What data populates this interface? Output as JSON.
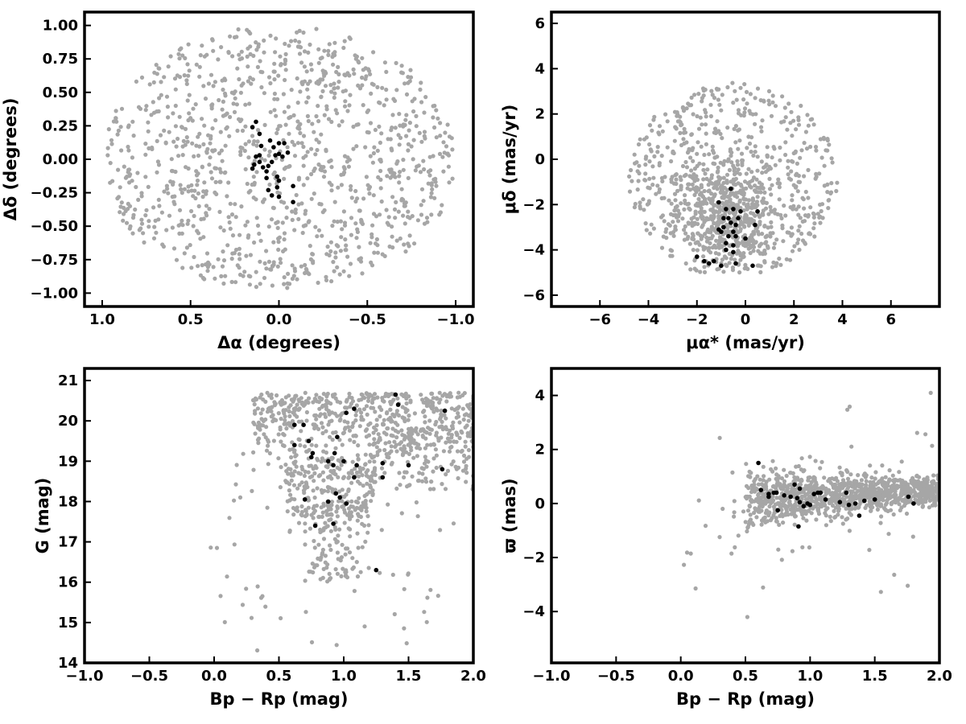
{
  "figure": {
    "background": "#ffffff",
    "field_color": "#a6a6a6",
    "member_color": "#000000"
  },
  "chart_data": [
    {
      "id": "sky",
      "type": "scatter",
      "xlabel": "Δα (degrees)",
      "ylabel": "Δδ (degrees)",
      "xlim": [
        1.1,
        -1.1
      ],
      "ylim": [
        -1.1,
        1.1
      ],
      "x_inverted": true,
      "xticks": [
        1.0,
        0.5,
        0.0,
        -0.5,
        -1.0
      ],
      "xtick_labels": [
        "1.0",
        "0.5",
        "0.0",
        "−0.5",
        "−1.0"
      ],
      "yticks": [
        1.0,
        0.75,
        0.5,
        0.25,
        0.0,
        -0.25,
        -0.5,
        -0.75,
        -1.0
      ],
      "ytick_labels": [
        "1.00",
        "0.75",
        "0.50",
        "0.25",
        "0.00",
        "−0.25",
        "−0.50",
        "−0.75",
        "−1.00"
      ],
      "grid": false,
      "legend": "none",
      "field_distribution": {
        "shape": "disk",
        "center": [
          0,
          0
        ],
        "radius": 1.0,
        "count": 1100
      },
      "series": [
        {
          "role": "members",
          "points": [
            [
              0.13,
              0.28
            ],
            [
              0.15,
              0.24
            ],
            [
              0.11,
              0.19
            ],
            [
              0.1,
              0.1
            ],
            [
              0.11,
              0.03
            ],
            [
              0.05,
              0.14
            ],
            [
              0.03,
              0.09
            ],
            [
              0.02,
              0.03
            ],
            [
              0.0,
              0.12
            ],
            [
              0.0,
              0.04
            ],
            [
              -0.03,
              0.12
            ],
            [
              -0.05,
              0.05
            ],
            [
              -0.02,
              0.02
            ],
            [
              0.04,
              -0.02
            ],
            [
              0.06,
              -0.05
            ],
            [
              0.09,
              -0.06
            ],
            [
              0.11,
              -0.02
            ],
            [
              0.13,
              0.02
            ],
            [
              0.14,
              -0.04
            ],
            [
              0.15,
              -0.07
            ],
            [
              0.07,
              -0.09
            ],
            [
              0.07,
              -0.14
            ],
            [
              0.01,
              -0.13
            ],
            [
              0.0,
              -0.16
            ],
            [
              0.01,
              -0.21
            ],
            [
              0.06,
              -0.23
            ],
            [
              0.04,
              -0.27
            ],
            [
              0.0,
              -0.28
            ],
            [
              -0.08,
              -0.2
            ],
            [
              -0.08,
              -0.32
            ]
          ]
        }
      ]
    },
    {
      "id": "pm",
      "type": "scatter",
      "xlabel": "μα* (mas/yr)",
      "ylabel": "μδ (mas/yr)",
      "xlim": [
        -8,
        8
      ],
      "ylim": [
        -6.5,
        6.5
      ],
      "xticks": [
        -6,
        -4,
        -2,
        0,
        2,
        4,
        6
      ],
      "xtick_labels": [
        "−6",
        "−4",
        "−2",
        "0",
        "2",
        "4",
        "6"
      ],
      "yticks": [
        6,
        4,
        2,
        0,
        -2,
        -4,
        -6
      ],
      "ytick_labels": [
        "6",
        "4",
        "2",
        "0",
        "−2",
        "−4",
        "−6"
      ],
      "grid": false,
      "legend": "none",
      "field_distribution": {
        "shape": "truncated-disk",
        "center": [
          -0.5,
          -0.9
        ],
        "radius": 4.3,
        "ymin": -5.0,
        "count": 1100,
        "dense_core": [
          -0.7,
          -2.5
        ]
      },
      "series": [
        {
          "role": "members",
          "points": [
            [
              -0.6,
              -1.3
            ],
            [
              -0.2,
              -2.3
            ],
            [
              -1.1,
              -1.9
            ],
            [
              -0.8,
              -2.2
            ],
            [
              -0.5,
              -2.2
            ],
            [
              0.5,
              -2.3
            ],
            [
              -0.7,
              -2.6
            ],
            [
              -0.9,
              -2.6
            ],
            [
              -0.3,
              -2.6
            ],
            [
              -0.6,
              -2.8
            ],
            [
              -0.9,
              -3.0
            ],
            [
              -0.4,
              -2.9
            ],
            [
              0.4,
              -2.9
            ],
            [
              -1.1,
              -3.1
            ],
            [
              -0.5,
              -3.2
            ],
            [
              -0.7,
              -3.4
            ],
            [
              -0.4,
              -3.4
            ],
            [
              0.0,
              -3.5
            ],
            [
              -0.8,
              -3.7
            ],
            [
              -0.5,
              -3.8
            ],
            [
              -0.8,
              -4.0
            ],
            [
              -0.5,
              -4.1
            ],
            [
              -2.0,
              -4.3
            ],
            [
              -1.7,
              -4.5
            ],
            [
              -1.5,
              -4.6
            ],
            [
              -1.0,
              -4.7
            ],
            [
              -0.4,
              -4.6
            ],
            [
              0.3,
              -4.7
            ],
            [
              -1.3,
              -4.5
            ],
            [
              -1.0,
              -3.2
            ]
          ]
        }
      ]
    },
    {
      "id": "cmd",
      "type": "scatter",
      "xlabel": "Bp − Rp (mag)",
      "ylabel": "G (mag)",
      "xlim": [
        -1.0,
        2.0
      ],
      "ylim": [
        14,
        21.3
      ],
      "xticks": [
        -1.0,
        -0.5,
        0.0,
        0.5,
        1.0,
        1.5,
        2.0
      ],
      "xtick_labels": [
        "−1.0",
        "−0.5",
        "0.0",
        "0.5",
        "1.0",
        "1.5",
        "2.0"
      ],
      "yticks": [
        14,
        15,
        16,
        17,
        18,
        19,
        20,
        21
      ],
      "ytick_labels": [
        "14",
        "15",
        "16",
        "17",
        "18",
        "19",
        "20",
        "21"
      ],
      "grid": false,
      "legend": "none",
      "series": [
        {
          "role": "members",
          "points": [
            [
              0.62,
              19.9
            ],
            [
              0.69,
              19.9
            ],
            [
              0.73,
              19.5
            ],
            [
              0.76,
              19.2
            ],
            [
              0.75,
              19.1
            ],
            [
              0.62,
              19.4
            ],
            [
              1.02,
              20.2
            ],
            [
              1.08,
              20.3
            ],
            [
              0.88,
              19.0
            ],
            [
              0.93,
              19.2
            ],
            [
              0.95,
              19.6
            ],
            [
              1.0,
              19.0
            ],
            [
              0.92,
              18.9
            ],
            [
              1.1,
              18.9
            ],
            [
              1.3,
              18.95
            ],
            [
              1.5,
              18.9
            ],
            [
              1.4,
              20.65
            ],
            [
              1.42,
              20.4
            ],
            [
              1.78,
              20.25
            ],
            [
              1.76,
              18.8
            ],
            [
              1.08,
              18.6
            ],
            [
              1.3,
              18.6
            ],
            [
              0.94,
              18.2
            ],
            [
              0.97,
              18.1
            ],
            [
              0.88,
              18.0
            ],
            [
              1.02,
              17.95
            ],
            [
              0.7,
              18.05
            ],
            [
              0.92,
              17.45
            ],
            [
              0.78,
              17.4
            ],
            [
              1.25,
              16.3
            ]
          ]
        }
      ]
    },
    {
      "id": "parallax",
      "type": "scatter",
      "xlabel": "Bp − Rp (mag)",
      "ylabel": "ϖ (mas)",
      "xlim": [
        -1.0,
        2.0
      ],
      "ylim": [
        -5.9,
        5.0
      ],
      "xticks": [
        -1.0,
        -0.5,
        0.0,
        0.5,
        1.0,
        1.5,
        2.0
      ],
      "xtick_labels": [
        "−1.0",
        "−0.5",
        "0.0",
        "0.5",
        "1.0",
        "1.5",
        "2.0"
      ],
      "yticks": [
        4,
        2,
        0,
        -2,
        -4
      ],
      "ytick_labels": [
        "4",
        "2",
        "0",
        "−2",
        "−4"
      ],
      "grid": false,
      "legend": "none",
      "series": [
        {
          "role": "members",
          "points": [
            [
              0.6,
              1.5
            ],
            [
              0.62,
              0.5
            ],
            [
              0.68,
              0.35
            ],
            [
              0.68,
              0.25
            ],
            [
              0.72,
              0.4
            ],
            [
              0.74,
              0.4
            ],
            [
              0.75,
              -0.25
            ],
            [
              0.8,
              0.3
            ],
            [
              0.85,
              0.25
            ],
            [
              0.88,
              0.7
            ],
            [
              0.9,
              0.2
            ],
            [
              0.92,
              0.55
            ],
            [
              0.92,
              0.05
            ],
            [
              0.95,
              -0.1
            ],
            [
              0.91,
              -0.85
            ],
            [
              0.98,
              0.0
            ],
            [
              1.0,
              -0.05
            ],
            [
              1.03,
              0.35
            ],
            [
              1.06,
              0.4
            ],
            [
              1.08,
              0.4
            ],
            [
              1.12,
              0.15
            ],
            [
              1.23,
              0.05
            ],
            [
              1.28,
              0.4
            ],
            [
              1.3,
              -0.05
            ],
            [
              1.35,
              0.0
            ],
            [
              1.38,
              -0.45
            ],
            [
              1.42,
              0.1
            ],
            [
              1.5,
              0.15
            ],
            [
              1.76,
              0.25
            ],
            [
              1.8,
              0.0
            ]
          ]
        }
      ]
    }
  ]
}
